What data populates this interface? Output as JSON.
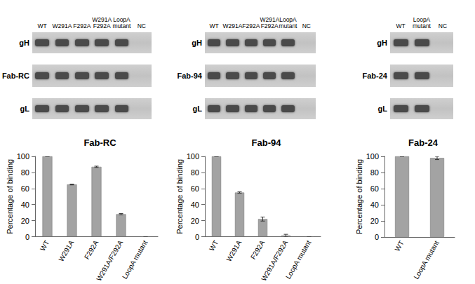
{
  "chart_data": [
    {
      "type": "bar",
      "title": "Fab-RC",
      "y_label": "Percentage of binding",
      "categories": [
        "WT",
        "W291A",
        "F292A",
        "W291A/F292A",
        "LoopA mutant"
      ],
      "values": [
        100,
        65,
        87,
        28,
        0
      ],
      "errors": [
        0,
        0.5,
        0.8,
        0.8,
        0
      ],
      "color": "#a3a3a3",
      "ylim": [
        0,
        100
      ],
      "yticks": [
        0,
        20,
        40,
        60,
        80,
        100
      ],
      "grid": false
    },
    {
      "type": "bar",
      "title": "Fab-94",
      "y_label": "Percentage of binding",
      "categories": [
        "WT",
        "W291A",
        "F292A",
        "W291A/F292A",
        "LoopA mutant"
      ],
      "values": [
        100,
        55,
        22,
        1.5,
        0
      ],
      "errors": [
        0,
        0.8,
        2.5,
        1.5,
        0
      ],
      "color": "#a3a3a3",
      "ylim": [
        0,
        100
      ],
      "yticks": [
        0,
        20,
        40,
        60,
        80,
        100
      ],
      "grid": false
    },
    {
      "type": "bar",
      "title": "Fab-24",
      "y_label": "Percentage of binding",
      "categories": [
        "WT",
        "LoopA mutant"
      ],
      "values": [
        100,
        98
      ],
      "errors": [
        0,
        2
      ],
      "color": "#a3a3a3",
      "ylim": [
        0,
        100
      ],
      "yticks": [
        0,
        20,
        40,
        60,
        80,
        100
      ],
      "grid": false
    }
  ],
  "gels": [
    {
      "rows": [
        "gH",
        "Fab-RC",
        "gL"
      ],
      "lanes": [
        {
          "label": "WT",
          "band": true
        },
        {
          "label": "W291A",
          "band": true
        },
        {
          "label": "F292A",
          "band": true
        },
        {
          "label": "W291A F292A",
          "band": true
        },
        {
          "label": "LoopA mutant",
          "band": true
        },
        {
          "label": "NC",
          "band": false
        }
      ]
    },
    {
      "rows": [
        "gH",
        "Fab-94",
        "gL"
      ],
      "lanes": [
        {
          "label": "WT",
          "band": true
        },
        {
          "label": "W291A",
          "band": true
        },
        {
          "label": "F292A",
          "band": true
        },
        {
          "label": "W291A F292A",
          "band": true
        },
        {
          "label": "LoopA mutant",
          "band": true
        },
        {
          "label": "NC",
          "band": false
        }
      ]
    },
    {
      "rows": [
        "gH",
        "Fab-24",
        "gL"
      ],
      "lanes": [
        {
          "label": "WT",
          "band": true
        },
        {
          "label": "LoopA mutant",
          "band": true
        },
        {
          "label": "NC",
          "band": false
        }
      ]
    }
  ]
}
